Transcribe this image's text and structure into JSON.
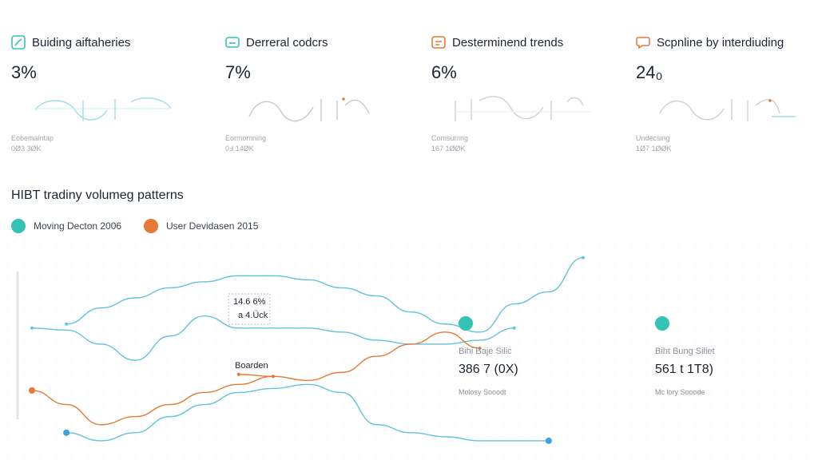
{
  "colors": {
    "teal": "#34c3b2",
    "orange": "#e57a37",
    "line_blue": "#63c2dd",
    "text": "#1c2433",
    "muted": "#a0a6ae"
  },
  "kpis": [
    {
      "icon": "bar-chart-icon",
      "title": "Buiding aiftaheries",
      "value": "3%",
      "sub": "Eobemaintap",
      "sub2": "0Ø3 3ØK"
    },
    {
      "icon": "tv-icon",
      "title": "Derreral codcrs",
      "value": "7%",
      "sub": "Eormomning",
      "sub2": "0Ⅎ 14ØK"
    },
    {
      "icon": "calendar-icon",
      "title": "Desterminend trends",
      "value": "6%",
      "sub": "Comsumng",
      "sub2": "167 1ØØK"
    },
    {
      "icon": "chat-icon",
      "title": "Scpnline by interdiuding",
      "value": "24₀",
      "sub": "Undecsing",
      "sub2": "1Ø7 1ØØK"
    }
  ],
  "section_title": "HIBT tradiny volumeg patterns",
  "legend": [
    {
      "name": "Moving Decton 2006",
      "color": "#34c3b2"
    },
    {
      "name": "User Devidasen 2015",
      "color": "#e57a37"
    }
  ],
  "tooltip": {
    "line1": "14.6 6%",
    "line2": "a 4.Ück"
  },
  "annotation": "Boarden",
  "stats": [
    {
      "icon": "teal-dot-icon",
      "label": "Bihi Baje Silic",
      "value": "386 7 (0X)",
      "sub": "Molosy Sooodt"
    },
    {
      "icon": "teal-dot-icon",
      "label": "Biht Bung Siliet",
      "value": "561 t 1T8)",
      "sub": "Mc lory Sooode"
    }
  ],
  "chart_data": {
    "type": "line",
    "title": "HIBT tradiny volumeg patterns",
    "xlabel": "",
    "ylabel": "",
    "x": [
      0,
      1,
      2,
      3,
      4,
      5,
      6,
      7,
      8,
      9,
      10,
      11,
      12,
      13,
      14,
      15,
      16
    ],
    "ylim": [
      0,
      100
    ],
    "grid": "dots",
    "legend_position": "top-left",
    "series": [
      {
        "name": "Moving Decton 2006",
        "color": "#63c2dd",
        "values": [
          null,
          62,
          70,
          75,
          80,
          83,
          86,
          86,
          84,
          80,
          76,
          68,
          62,
          58,
          72,
          78,
          95
        ]
      },
      {
        "name": "",
        "color": "#63c2dd",
        "values": [
          60,
          59,
          52,
          44,
          56,
          66,
          60,
          60,
          60,
          58,
          54,
          52,
          52,
          54,
          60,
          null,
          null
        ]
      },
      {
        "name": "User Devidasen 2015",
        "color": "#e57a37",
        "values": [
          null,
          null,
          null,
          null,
          null,
          null,
          37,
          36,
          34,
          38,
          46,
          52,
          58,
          50,
          null,
          null,
          null
        ]
      },
      {
        "name": "",
        "color": "#e57a37",
        "values": [
          29,
          22,
          12,
          16,
          22,
          28,
          32,
          36,
          null,
          null,
          null,
          null,
          null,
          null,
          null,
          null,
          null
        ]
      },
      {
        "name": "",
        "color": "#63c2dd",
        "values": [
          null,
          8,
          4,
          8,
          16,
          22,
          28,
          30,
          32,
          28,
          12,
          8,
          6,
          4,
          4,
          4,
          null
        ]
      }
    ]
  }
}
